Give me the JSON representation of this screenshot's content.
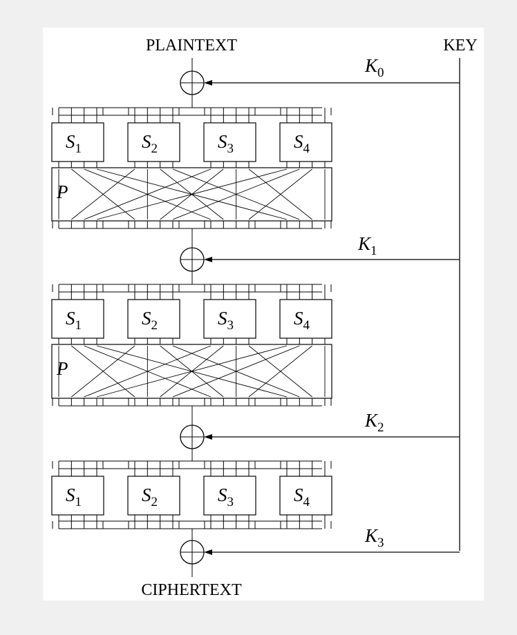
{
  "labels": {
    "input": "PLAINTEXT",
    "output": "CIPHERTEXT",
    "key": "KEY"
  },
  "sboxes": [
    {
      "letter": "S",
      "index": "1"
    },
    {
      "letter": "S",
      "index": "2"
    },
    {
      "letter": "S",
      "index": "3"
    },
    {
      "letter": "S",
      "index": "4"
    }
  ],
  "permutation_label": "P",
  "subkeys": [
    {
      "letter": "K",
      "index": "0"
    },
    {
      "letter": "K",
      "index": "1"
    },
    {
      "letter": "K",
      "index": "2"
    },
    {
      "letter": "K",
      "index": "3"
    }
  ],
  "rounds": [
    {
      "has_permutation": true
    },
    {
      "has_permutation": true
    },
    {
      "has_permutation": false
    }
  ],
  "permutation_map": [
    0,
    4,
    8,
    12,
    1,
    5,
    9,
    13,
    2,
    6,
    10,
    14,
    3,
    7,
    11,
    15
  ],
  "colors": {
    "line": "#000000",
    "background": "#ffffff",
    "page": "#f0f0f0"
  }
}
